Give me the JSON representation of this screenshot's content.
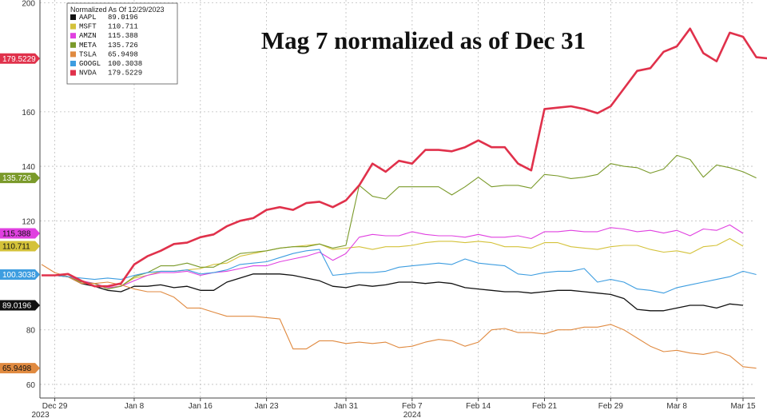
{
  "chart_data": {
    "type": "line",
    "title": "Mag 7 normalized as of Dec 31",
    "legend_title": "Normalized As Of 12/29/2023",
    "legend_position": "top-left",
    "ylim": [
      55,
      201
    ],
    "y_ticks": [
      60,
      80,
      120,
      140,
      160,
      200
    ],
    "grid": true,
    "x_ticks": [
      {
        "index": 1,
        "label": "Dec 29",
        "sub": "2023"
      },
      {
        "index": 7,
        "label": "Jan 8",
        "sub": ""
      },
      {
        "index": 12,
        "label": "Jan 16",
        "sub": ""
      },
      {
        "index": 17,
        "label": "Jan 23",
        "sub": ""
      },
      {
        "index": 23,
        "label": "Jan 31",
        "sub": ""
      },
      {
        "index": 28,
        "label": "Feb 7",
        "sub": "2024"
      },
      {
        "index": 33,
        "label": "Feb 14",
        "sub": ""
      },
      {
        "index": 38,
        "label": "Feb 21",
        "sub": ""
      },
      {
        "index": 43,
        "label": "Feb 29",
        "sub": ""
      },
      {
        "index": 48,
        "label": "Mar 8",
        "sub": ""
      },
      {
        "index": 53,
        "label": "Mar 15",
        "sub": ""
      }
    ],
    "series": [
      {
        "name": "AAPL",
        "color": "#111111",
        "last": "89.0196",
        "width": 1.3,
        "values": [
          100,
          100,
          99.5,
          97,
          96,
          94.5,
          94,
          96,
          96,
          96.5,
          95.5,
          96,
          94.5,
          94.5,
          97.5,
          99,
          100.5,
          100.5,
          100.5,
          100,
          99,
          98,
          96,
          95.5,
          96.5,
          96,
          96.5,
          97.5,
          97.5,
          97,
          97.5,
          97,
          95.5,
          95,
          94.5,
          94,
          94,
          93.5,
          94,
          94.5,
          94.5,
          94,
          93.5,
          93,
          91.5,
          87.5,
          87,
          87,
          88,
          89,
          89,
          88,
          89.5,
          89.0196
        ]
      },
      {
        "name": "MSFT",
        "color": "#d4c23a",
        "last": "110.711",
        "width": 1.1,
        "values": [
          100,
          100,
          99.5,
          98,
          97,
          95.5,
          96,
          99,
          100,
          101.5,
          101.5,
          102,
          102.5,
          104,
          104.5,
          107,
          108,
          109,
          110,
          110.5,
          111,
          111.5,
          109.5,
          110,
          110.5,
          109.5,
          110.5,
          110.5,
          111,
          112,
          112.5,
          112.5,
          112,
          112.5,
          112,
          110.5,
          110.5,
          110,
          112,
          112,
          110.5,
          110,
          109.5,
          110.5,
          111,
          111,
          109.5,
          108.5,
          109,
          108,
          110.5,
          111,
          113.5,
          110.711
        ]
      },
      {
        "name": "AMZN",
        "color": "#e040e0",
        "last": "115.388",
        "width": 1.1,
        "values": [
          100,
          100,
          99.5,
          98,
          97,
          95.5,
          96,
          98,
          100,
          101,
          101,
          101.5,
          100,
          101,
          101.5,
          102.5,
          103.5,
          103.5,
          105,
          106,
          107,
          108.5,
          105.5,
          108,
          114,
          115,
          114.5,
          114.5,
          116,
          115,
          114.5,
          114.5,
          114,
          115,
          114,
          114,
          114.5,
          113.5,
          116,
          116,
          116.5,
          116,
          116,
          117.5,
          117,
          116,
          116.5,
          115.5,
          116.5,
          114.5,
          117,
          116.5,
          118.5,
          115.388
        ]
      },
      {
        "name": "META",
        "color": "#7a9a2a",
        "last": "135.726",
        "width": 1.1,
        "values": [
          100,
          100,
          99.5,
          97.5,
          97,
          95,
          96,
          99.5,
          101,
          103.5,
          103.5,
          104.5,
          103,
          103,
          105.5,
          108,
          108.5,
          109,
          110,
          110.5,
          110.5,
          111.5,
          110,
          111,
          133,
          129,
          128,
          132.5,
          132.5,
          132.5,
          132.5,
          129.5,
          132.5,
          136,
          132.5,
          133,
          133,
          132,
          137,
          136.5,
          135.5,
          136,
          137,
          141,
          140,
          139.5,
          137.5,
          139,
          144,
          142.5,
          136,
          140.5,
          139.5,
          138,
          135.726
        ]
      },
      {
        "name": "TSLA",
        "color": "#e08a40",
        "last": "65.9498",
        "width": 1.1,
        "values": [
          104,
          101,
          99.5,
          97,
          97,
          97.5,
          96.5,
          95,
          94,
          94,
          92,
          88,
          88,
          86.5,
          85,
          85,
          85,
          84.5,
          84,
          73,
          73,
          76,
          76,
          75,
          75.5,
          75,
          75.5,
          73.5,
          74,
          75.5,
          76.5,
          76,
          74,
          75.5,
          80,
          80.5,
          79,
          79,
          78.5,
          80,
          80,
          81,
          81,
          82,
          80,
          77,
          74,
          72,
          72.5,
          71.5,
          71,
          72,
          70.5,
          66.5,
          65.9498
        ]
      },
      {
        "name": "GOOGL",
        "color": "#3d9de0",
        "last": "100.3038",
        "width": 1.1,
        "values": [
          100,
          100,
          99.5,
          99,
          98.5,
          99,
          98.5,
          100,
          101,
          101.5,
          101.5,
          102,
          100.5,
          101,
          102,
          104,
          104.5,
          105,
          106.5,
          108,
          109,
          109.5,
          100,
          100.5,
          101,
          101,
          101.5,
          103,
          103.5,
          104,
          104.5,
          104,
          106,
          104.5,
          104,
          103.5,
          100.5,
          100,
          101,
          101.5,
          101.5,
          102.5,
          97.5,
          98.5,
          97.5,
          95,
          94.5,
          93.5,
          95.5,
          96.5,
          97.5,
          98.5,
          99.5,
          101.5,
          100.3038
        ]
      },
      {
        "name": "NVDA",
        "color": "#e0314b",
        "last": "179.5229",
        "width": 2.6,
        "values": [
          100,
          100,
          100.5,
          98,
          96,
          96,
          97,
          104,
          107,
          109,
          111.5,
          112,
          114,
          115,
          118,
          120,
          121,
          124,
          125,
          124,
          126.5,
          127,
          125,
          127.5,
          133,
          141,
          138,
          142,
          141,
          146,
          146,
          145.5,
          147,
          149.5,
          147,
          147,
          141,
          138.5,
          161,
          161.5,
          162,
          161,
          159.5,
          162,
          168.5,
          175,
          176,
          182,
          184,
          190.5,
          181.5,
          178.5,
          189,
          187.5,
          180,
          179.5229
        ]
      }
    ]
  }
}
